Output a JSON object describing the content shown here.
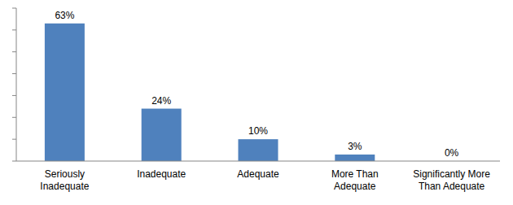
{
  "chart_data": {
    "type": "bar",
    "categories": [
      "Seriously Inadequate",
      "Inadequate",
      "Adequate",
      "More Than Adequate",
      "Significantly More Than Adequate"
    ],
    "values": [
      63,
      24,
      10,
      3,
      0
    ],
    "value_labels": [
      "63%",
      "24%",
      "10%",
      "3%",
      "0%"
    ],
    "color": "#4f81bd",
    "ylim": [
      0,
      70
    ],
    "yticks": [
      0,
      10,
      20,
      30,
      40,
      50,
      60,
      70
    ],
    "grid": false,
    "data_labels": true,
    "tick_labels": "x"
  }
}
